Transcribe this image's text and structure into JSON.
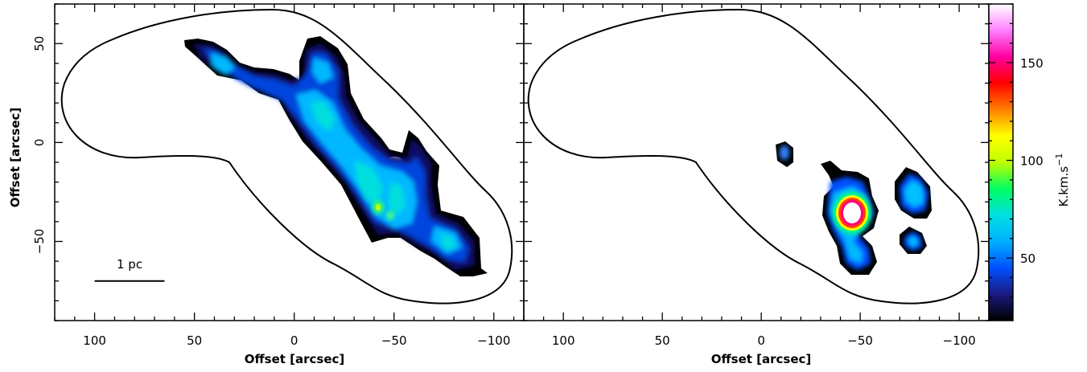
{
  "chart_data": {
    "type": "heatmap",
    "panels": [
      {
        "xlabel": "Offset [arcsec]",
        "ylabel": "Offset [arcsec]",
        "xlim": [
          120,
          -115
        ],
        "ylim": [
          -90,
          70
        ],
        "xticks": [
          100,
          50,
          0,
          -50,
          -100
        ],
        "yticks": [
          50,
          0,
          -50
        ],
        "scalebar_label": "1 pc",
        "scalebar_range": [
          100,
          65
        ],
        "scalebar_y": -70,
        "peak_intensity": 60
      },
      {
        "xlabel": "Offset [arcsec]",
        "xlim": [
          120,
          -115
        ],
        "ylim": [
          -90,
          70
        ],
        "xticks": [
          100,
          50,
          0,
          -50,
          -100
        ],
        "peak_intensity": 180
      }
    ],
    "colorbar": {
      "label": "K.km.s",
      "label_superscript": "−1",
      "range": [
        18,
        180
      ],
      "ticks": [
        50,
        100,
        150
      ],
      "colormap": [
        "#000000",
        "#1a1a80",
        "#0050ff",
        "#00b0ff",
        "#00e0e0",
        "#00ff60",
        "#c0ff00",
        "#ffff00",
        "#ff8000",
        "#ff0000",
        "#ff00a0",
        "#ff80ff",
        "#ffffff"
      ]
    }
  }
}
